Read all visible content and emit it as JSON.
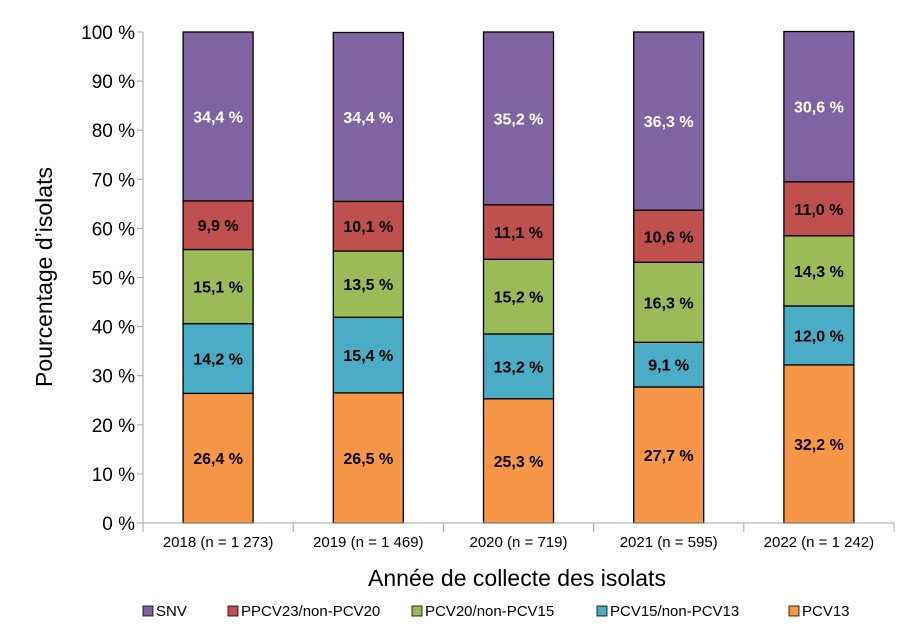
{
  "chart_data": {
    "type": "bar",
    "stacked": true,
    "title": "",
    "xlabel": "Année de collecte des isolats",
    "ylabel": "Pourcentage d’isolats",
    "ylim": [
      0,
      100
    ],
    "yticks": [
      0,
      10,
      20,
      30,
      40,
      50,
      60,
      70,
      80,
      90,
      100
    ],
    "ytick_labels": [
      "0 %",
      "10 %",
      "20 %",
      "30 %",
      "40 %",
      "50 %",
      "60 %",
      "70 %",
      "80 %",
      "90 %",
      "100 %"
    ],
    "grid": false,
    "legend_position": "bottom",
    "categories": [
      "2018 (n = 1 273)",
      "2019 (n = 1 469)",
      "2020 (n = 719)",
      "2021 (n = 595)",
      "2022 (n = 1 242)"
    ],
    "series": [
      {
        "name": "PCV13",
        "color": "#f79646",
        "values": [
          26.4,
          26.5,
          25.3,
          27.7,
          32.2
        ],
        "labels": [
          "26,4 %",
          "26,5 %",
          "25,3 %",
          "27,7 %",
          "32,2 %"
        ],
        "label_color": "#000000"
      },
      {
        "name": "PCV15/non-PCV13",
        "color": "#4bacc6",
        "values": [
          14.2,
          15.4,
          13.2,
          9.1,
          12.0
        ],
        "labels": [
          "14,2 %",
          "15,4 %",
          "13,2 %",
          "9,1 %",
          "12,0 %"
        ],
        "label_color": "#000000"
      },
      {
        "name": "PCV20/non-PCV15",
        "color": "#9bbb59",
        "values": [
          15.1,
          13.5,
          15.2,
          16.3,
          14.3
        ],
        "labels": [
          "15,1 %",
          "13,5 %",
          "15,2 %",
          "16,3 %",
          "14,3 %"
        ],
        "label_color": "#000000"
      },
      {
        "name": "PPCV23/non-PCV20",
        "color": "#c0504d",
        "values": [
          9.9,
          10.1,
          11.1,
          10.6,
          11.0
        ],
        "labels": [
          "9,9 %",
          "10,1 %",
          "11,1 %",
          "10,6 %",
          "11,0 %"
        ],
        "label_color": "#000000"
      },
      {
        "name": "SNV",
        "color": "#8064a2",
        "values": [
          34.4,
          34.4,
          35.2,
          36.3,
          30.6
        ],
        "labels": [
          "34,4 %",
          "34,4 %",
          "35,2 %",
          "36,3 %",
          "30,6 %"
        ],
        "label_color": "#ffffff"
      }
    ],
    "legend_order": [
      "SNV",
      "PPCV23/non-PCV20",
      "PCV20/non-PCV15",
      "PCV15/non-PCV13",
      "PCV13"
    ]
  }
}
